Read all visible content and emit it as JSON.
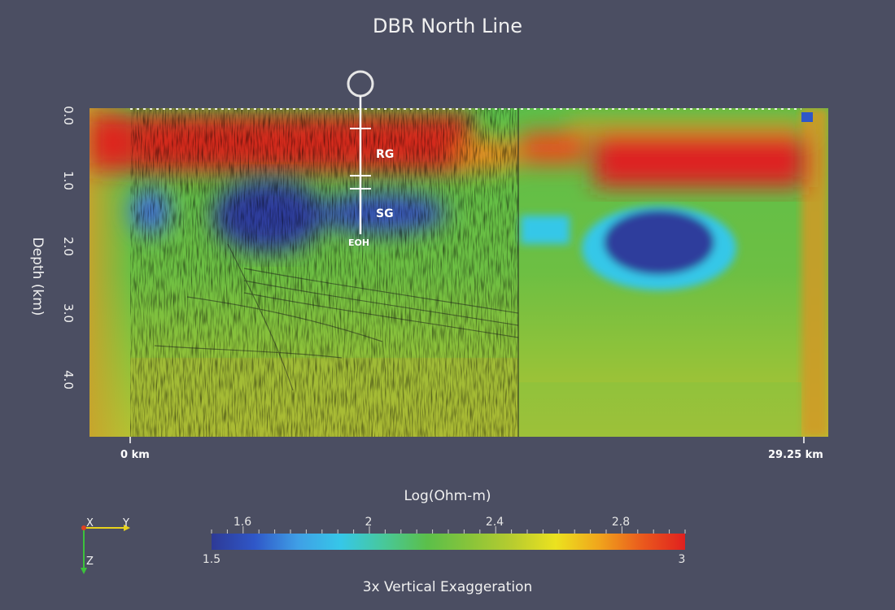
{
  "chart_data": {
    "type": "heatmap",
    "title": "DBR North Line",
    "ylabel": "Depth (km)",
    "y_ticks": [
      "0.0",
      "1.0",
      "2.0",
      "3.0",
      "4.0"
    ],
    "y_tick_values": [
      0.0,
      1.0,
      2.0,
      3.0,
      4.0
    ],
    "ylim": [
      0.0,
      4.9
    ],
    "x_ticks": [
      "0 km",
      "29.25 km"
    ],
    "x_tick_values": [
      0,
      29.25
    ],
    "colorbar": {
      "label": "Log(Ohm-m)",
      "range": [
        1.5,
        3
      ],
      "min_label": "1.5",
      "max_label": "3",
      "ticks": [
        "1.6",
        "2",
        "2.4",
        "2.8"
      ],
      "tick_values": [
        1.6,
        2.0,
        2.4,
        2.8
      ],
      "colormap": [
        "#2e3a96",
        "#2f57c8",
        "#3f9fe6",
        "#36c7e8",
        "#48c89a",
        "#5bbf4a",
        "#88c43a",
        "#b8cc2f",
        "#ece21f",
        "#f0a51c",
        "#ea5a1d",
        "#e0201f"
      ]
    },
    "well": {
      "units": [
        "RG",
        "SG"
      ],
      "end_label": "EOH"
    },
    "footnote": "3x Vertical Exaggeration",
    "orientation_axes": [
      "X",
      "Y",
      "Z"
    ]
  }
}
